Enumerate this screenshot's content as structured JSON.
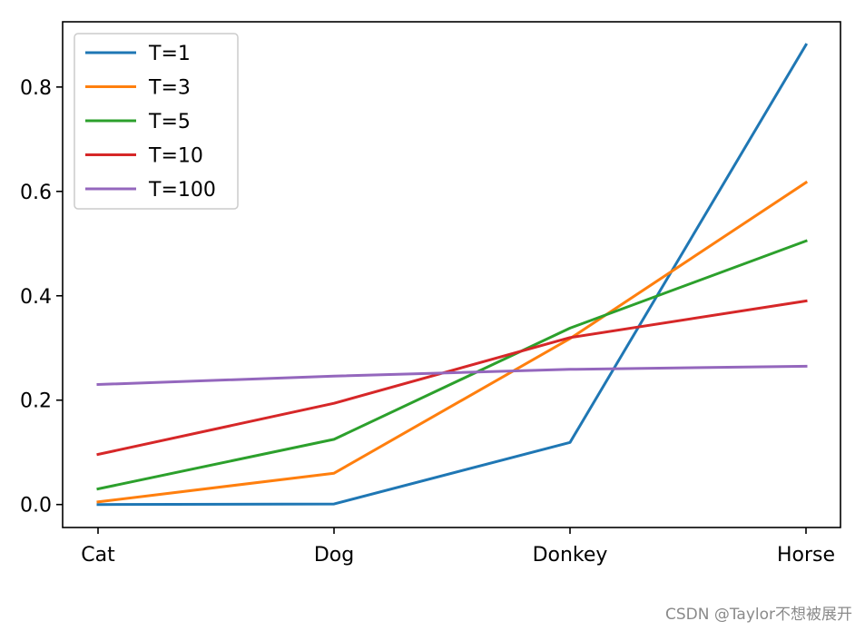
{
  "chart_data": {
    "type": "line",
    "categories": [
      "Cat",
      "Dog",
      "Donkey",
      "Horse"
    ],
    "series": [
      {
        "name": "T=1",
        "color": "#1f77b4",
        "values": [
          0.0,
          0.001,
          0.119,
          0.881
        ]
      },
      {
        "name": "T=3",
        "color": "#ff7f0e",
        "values": [
          0.005,
          0.06,
          0.318,
          0.617
        ]
      },
      {
        "name": "T=5",
        "color": "#2ca02c",
        "values": [
          0.03,
          0.125,
          0.338,
          0.505
        ]
      },
      {
        "name": "T=10",
        "color": "#d62728",
        "values": [
          0.096,
          0.194,
          0.32,
          0.39
        ]
      },
      {
        "name": "T=100",
        "color": "#9467bd",
        "values": [
          0.23,
          0.246,
          0.259,
          0.265
        ]
      }
    ],
    "yticks": [
      0.0,
      0.2,
      0.4,
      0.6,
      0.8
    ],
    "ytick_labels": [
      "0.0",
      "0.2",
      "0.4",
      "0.6",
      "0.8"
    ],
    "ylim": [
      -0.044,
      0.925
    ],
    "grid": false,
    "legend_position": "upper-left"
  },
  "watermark": "CSDN @Taylor不想被展开"
}
